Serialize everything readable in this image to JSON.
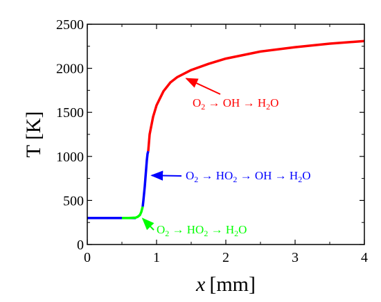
{
  "chart_data": {
    "type": "line",
    "xlabel_var": "x",
    "xlabel_unit": "[mm]",
    "ylabel": "T [K]",
    "xlim": [
      0,
      4
    ],
    "ylim": [
      0,
      2500
    ],
    "xticks": [
      0,
      1,
      2,
      3,
      4
    ],
    "yticks": [
      0,
      500,
      1000,
      1500,
      2000,
      2500
    ],
    "grid": false,
    "series": [
      {
        "color": "#0000ff",
        "points": [
          [
            0.0,
            300
          ],
          [
            0.5,
            300
          ],
          [
            0.7,
            300
          ]
        ]
      },
      {
        "color": "#00ff00",
        "points": [
          [
            0.5,
            300
          ],
          [
            0.6,
            301
          ],
          [
            0.7,
            305
          ],
          [
            0.73,
            315
          ],
          [
            0.76,
            335
          ],
          [
            0.78,
            370
          ],
          [
            0.79,
            400
          ],
          [
            0.8,
            430
          ]
        ]
      },
      {
        "color": "#0000ff",
        "points": [
          [
            0.8,
            430
          ],
          [
            0.81,
            500
          ],
          [
            0.82,
            580
          ],
          [
            0.83,
            660
          ],
          [
            0.84,
            760
          ],
          [
            0.85,
            860
          ],
          [
            0.86,
            960
          ],
          [
            0.87,
            1030
          ],
          [
            0.88,
            1060
          ]
        ]
      },
      {
        "color": "#ff0000",
        "points": [
          [
            0.88,
            1060
          ],
          [
            0.9,
            1250
          ],
          [
            0.95,
            1450
          ],
          [
            1.0,
            1580
          ],
          [
            1.1,
            1740
          ],
          [
            1.2,
            1840
          ],
          [
            1.3,
            1900
          ],
          [
            1.5,
            1980
          ],
          [
            1.75,
            2050
          ],
          [
            2.0,
            2110
          ],
          [
            2.5,
            2190
          ],
          [
            3.0,
            2240
          ],
          [
            3.5,
            2280
          ],
          [
            4.0,
            2310
          ]
        ]
      }
    ],
    "annotations": [
      {
        "color": "#ff0000",
        "parts": [
          [
            "O",
            ""
          ],
          [
            "2",
            "sub"
          ],
          [
            " → OH → H",
            ""
          ],
          [
            "2",
            "sub"
          ],
          [
            "O",
            ""
          ]
        ],
        "arrow_to": [
          1.4,
          1900
        ]
      },
      {
        "color": "#0000ff",
        "parts": [
          [
            "O",
            ""
          ],
          [
            "2",
            "sub"
          ],
          [
            " → HO",
            ""
          ],
          [
            "2",
            "sub"
          ],
          [
            " → OH → H",
            ""
          ],
          [
            "2",
            "sub"
          ],
          [
            "O",
            ""
          ]
        ],
        "arrow_to": [
          0.9,
          800
        ]
      },
      {
        "color": "#00ff00",
        "parts": [
          [
            "O",
            ""
          ],
          [
            "2",
            "sub"
          ],
          [
            " → HO",
            ""
          ],
          [
            "2",
            "sub"
          ],
          [
            " → H",
            ""
          ],
          [
            "2",
            "sub"
          ],
          [
            "O",
            ""
          ]
        ],
        "arrow_to": [
          0.77,
          310
        ]
      }
    ]
  }
}
